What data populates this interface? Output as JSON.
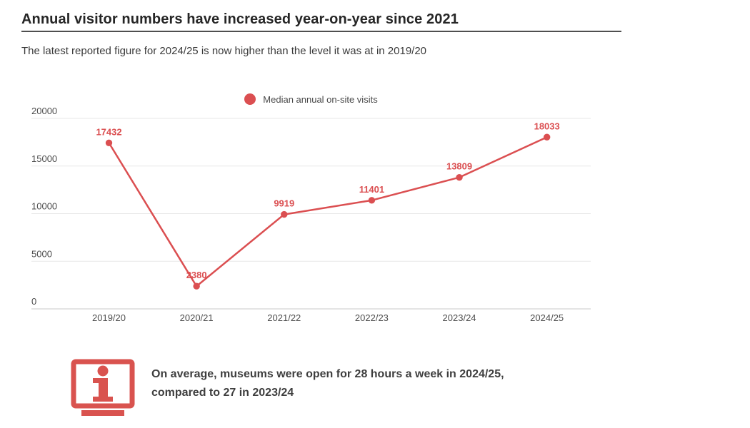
{
  "header": {
    "title": "Annual visitor numbers have increased year-on-year since 2021",
    "subtitle": "The latest reported figure for 2024/25 is now higher than the level it was at in 2019/20"
  },
  "chart_data": {
    "type": "line",
    "title": "Annual visitor numbers have increased year-on-year since 2021",
    "subtitle": "The latest reported figure for 2024/25 is now higher than the level it was at in 2019/20",
    "categories": [
      "2019/20",
      "2020/21",
      "2021/22",
      "2022/23",
      "2023/24",
      "2024/25"
    ],
    "series": [
      {
        "name": "Median annual on-site visits",
        "values": [
          17432,
          2380,
          9919,
          11401,
          13809,
          18033
        ]
      }
    ],
    "legend": [
      {
        "label": "Median annual on-site visits",
        "color": "#db4f51"
      }
    ],
    "legend_position": "top-center",
    "xlabel": "",
    "ylabel": "",
    "ylim": [
      0,
      20000
    ],
    "y_ticks": [
      0,
      5000,
      10000,
      15000,
      20000
    ],
    "grid": "horizontal",
    "data_labels": true,
    "colors": {
      "line": "#db4f51",
      "point": "#db4f51",
      "data_label": "#db4f51",
      "grid_line": "#e7e7e7",
      "axis_line": "#c9c9c9",
      "tick_label": "#4f4f4f"
    }
  },
  "footer": {
    "icon": "info-icon",
    "icon_color": "#d9534f",
    "note_lines": [
      "On average, museums were open for 28 hours a week in 2024/25,",
      "compared to 27 in 2023/24"
    ]
  }
}
